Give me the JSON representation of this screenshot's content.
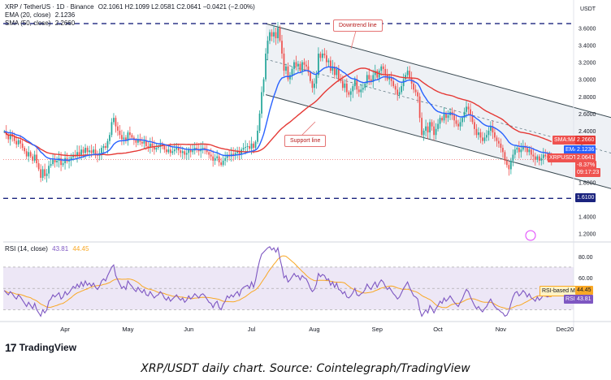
{
  "header": {
    "symbol": "XRP / TetherUS · 1D · Binance",
    "ohlc": "O2.1061 H2.1099 L2.0581 C2.0641 −0.0421 (−2.00%)",
    "ema_label": "EMA (20, close)",
    "ema_value": "2.1236",
    "sma_label": "SMA (50, close)",
    "sma_value": "2.2660",
    "rsi_label": "RSI (14, close)",
    "rsi_value": "43.81",
    "rsi_ma_value": "44.45"
  },
  "annotations": {
    "downtrend": "Downtrend line",
    "support": "Support line"
  },
  "tags": {
    "usdt": "USDT",
    "sma": "SMA:MA",
    "sma_val": "2.2660",
    "ema": "EMA",
    "ema_val": "2.1236",
    "pair": "XRPUSDT",
    "price": "2.0641",
    "change": "-8.37%",
    "countdown": "09:17:23",
    "level": "1.6100",
    "rsi_ma": "RSI-based MA",
    "rsi_ma_val": "44.45",
    "rsi": "RSI",
    "rsi_val": "43.81"
  },
  "branding": {
    "logo_mark": "17",
    "logo_text": "TradingView",
    "caption": "XRP/USDT daily chart. Source: Cointelegraph/TradingView"
  },
  "colors": {
    "up": "#26a69a",
    "down": "#ef5350",
    "ema": "#2962ff",
    "sma": "#e53935",
    "rsi": "#7e57c2",
    "rsi_ma": "#f9a825",
    "channel_fill": "#eceff4",
    "level_line": "#1a237e"
  },
  "chart_data": {
    "type": "candlestick",
    "price_axis": {
      "ticks": [
        3.6,
        3.4,
        3.2,
        3.0,
        2.8,
        2.6,
        2.4,
        2.2,
        2.0,
        1.8,
        1.6,
        1.4,
        1.2
      ],
      "tick_labels": [
        "3.6000",
        "3.4000",
        "3.2000",
        "3.0000",
        "2.8000",
        "2.6000",
        "2.4000",
        "2.2000",
        "2.0000",
        "1.8000",
        "1.6000",
        "1.4000",
        "1.2000"
      ],
      "range": [
        1.12,
        3.85
      ]
    },
    "time_axis": {
      "labels": [
        "Apr",
        "May",
        "Jun",
        "Jul",
        "Aug",
        "Sep",
        "Oct",
        "Nov",
        "Dec",
        "20"
      ],
      "label_day_index": [
        30,
        61,
        91,
        122,
        153,
        184,
        214,
        245,
        275,
        306
      ]
    },
    "horizontal_levels": [
      1.61,
      3.65
    ],
    "downtrend_line": [
      [
        129,
        3.65
      ],
      [
        300,
        2.55
      ]
    ],
    "support_line": [
      [
        129,
        2.82
      ],
      [
        300,
        1.72
      ]
    ],
    "last_close": 2.0641,
    "ema_20_last": 2.1236,
    "sma_50_last": 2.266,
    "rsi": {
      "ticks": [
        80,
        60,
        40
      ],
      "tick_labels": [
        "80.00",
        "60.00",
        "40.00"
      ],
      "upper_band": 70,
      "lower_band": 30,
      "range": [
        22,
        92
      ],
      "last": 43.81,
      "ma_last": 44.45
    },
    "closes": [
      2.39,
      2.35,
      2.3,
      2.36,
      2.33,
      2.28,
      2.24,
      2.29,
      2.25,
      2.2,
      2.16,
      2.1,
      2.15,
      2.1,
      2.05,
      2.12,
      2.02,
      1.95,
      1.85,
      1.95,
      1.87,
      1.9,
      1.99,
      2.01,
      2.06,
      2.03,
      2.05,
      2.08,
      2.0,
      2.02,
      2.08,
      2.04,
      2.06,
      2.09,
      2.12,
      2.1,
      2.15,
      2.12,
      2.18,
      2.14,
      2.2,
      2.15,
      2.17,
      2.14,
      2.18,
      2.13,
      2.11,
      2.14,
      2.2,
      2.22,
      2.2,
      2.28,
      2.35,
      2.5,
      2.55,
      2.45,
      2.4,
      2.35,
      2.3,
      2.32,
      2.28,
      2.38,
      2.35,
      2.32,
      2.29,
      2.26,
      2.3,
      2.27,
      2.25,
      2.28,
      2.22,
      2.2,
      2.25,
      2.22,
      2.18,
      2.2,
      2.21,
      2.24,
      2.22,
      2.18,
      2.15,
      2.18,
      2.14,
      2.16,
      2.18,
      2.2,
      2.17,
      2.14,
      2.16,
      2.12,
      2.14,
      2.18,
      2.15,
      2.17,
      2.2,
      2.18,
      2.16,
      2.19,
      2.2,
      2.18,
      2.15,
      2.12,
      2.1,
      2.05,
      2.08,
      2.1,
      2.03,
      2.0,
      2.05,
      2.08,
      2.12,
      2.1,
      2.13,
      2.11,
      2.14,
      2.16,
      2.12,
      2.18,
      2.2,
      2.21,
      2.22,
      2.19,
      2.25,
      2.2,
      2.27,
      2.4,
      2.6,
      2.85,
      3.0,
      3.3,
      3.45,
      3.55,
      3.5,
      3.55,
      3.48,
      3.6,
      3.45,
      3.3,
      3.1,
      3.15,
      3.0,
      3.05,
      3.12,
      3.2,
      3.15,
      3.18,
      3.1,
      3.2,
      3.17,
      3.15,
      3.08,
      2.98,
      2.9,
      2.95,
      3.05,
      3.3,
      3.25,
      3.3,
      3.28,
      3.2,
      3.22,
      3.1,
      3.15,
      3.05,
      3.12,
      3.0,
      2.98,
      2.9,
      2.95,
      2.85,
      2.82,
      2.86,
      2.92,
      3.0,
      2.88,
      2.85,
      2.88,
      2.9,
      2.95,
      3.05,
      3.0,
      2.97,
      3.05,
      3.1,
      3.02,
      3.1,
      3.15,
      3.12,
      3.05,
      3.0,
      3.02,
      2.98,
      2.92,
      2.88,
      2.82,
      2.85,
      2.92,
      3.0,
      3.05,
      3.1,
      3.02,
      2.95,
      2.88,
      2.85,
      2.8,
      2.55,
      2.35,
      2.4,
      2.45,
      2.38,
      2.5,
      2.45,
      2.35,
      2.42,
      2.48,
      2.55,
      2.52,
      2.6,
      2.55,
      2.58,
      2.62,
      2.58,
      2.52,
      2.48,
      2.45,
      2.5,
      2.55,
      2.62,
      2.68,
      2.65,
      2.58,
      2.5,
      2.42,
      2.35,
      2.38,
      2.32,
      2.28,
      2.32,
      2.35,
      2.4,
      2.45,
      2.38,
      2.32,
      2.28,
      2.25,
      2.2,
      2.15,
      2.05,
      2.0,
      1.95,
      2.05,
      2.12,
      2.18,
      2.2,
      2.15,
      2.18,
      2.22,
      2.2,
      2.15,
      2.18,
      2.12,
      2.1,
      2.06,
      2.1,
      2.05,
      2.08,
      2.12,
      2.1,
      2.09,
      2.1,
      2.0641
    ],
    "rsi_values": [
      48,
      46,
      44,
      47,
      45,
      42,
      40,
      44,
      42,
      39,
      36,
      33,
      37,
      34,
      31,
      36,
      30,
      27,
      24,
      30,
      27,
      30,
      38,
      40,
      44,
      42,
      44,
      46,
      40,
      42,
      47,
      44,
      46,
      49,
      52,
      50,
      54,
      51,
      56,
      52,
      57,
      53,
      55,
      52,
      55,
      51,
      49,
      52,
      57,
      59,
      57,
      62,
      66,
      70,
      72,
      62,
      58,
      54,
      50,
      52,
      49,
      57,
      54,
      52,
      49,
      47,
      51,
      48,
      46,
      49,
      44,
      43,
      47,
      44,
      41,
      43,
      44,
      47,
      45,
      41,
      39,
      42,
      38,
      40,
      42,
      44,
      41,
      39,
      41,
      37,
      39,
      43,
      40,
      42,
      45,
      43,
      41,
      44,
      45,
      43,
      40,
      37,
      36,
      32,
      36,
      38,
      32,
      30,
      35,
      38,
      43,
      41,
      44,
      42,
      45,
      47,
      43,
      49,
      51,
      52,
      53,
      50,
      56,
      51,
      58,
      68,
      76,
      82,
      84,
      86,
      88,
      89,
      86,
      88,
      84,
      88,
      78,
      70,
      60,
      62,
      56,
      58,
      61,
      64,
      61,
      62,
      58,
      62,
      60,
      59,
      55,
      50,
      47,
      49,
      54,
      64,
      61,
      63,
      62,
      58,
      59,
      53,
      56,
      51,
      55,
      49,
      48,
      45,
      47,
      42,
      41,
      43,
      46,
      50,
      44,
      43,
      45,
      46,
      49,
      54,
      51,
      49,
      53,
      56,
      51,
      55,
      58,
      56,
      52,
      49,
      51,
      48,
      45,
      43,
      40,
      42,
      46,
      50,
      53,
      56,
      51,
      47,
      43,
      42,
      40,
      30,
      24,
      27,
      30,
      27,
      34,
      31,
      27,
      31,
      34,
      38,
      36,
      41,
      38,
      40,
      43,
      40,
      37,
      35,
      33,
      37,
      40,
      45,
      49,
      47,
      42,
      38,
      34,
      31,
      33,
      30,
      28,
      31,
      33,
      37,
      40,
      36,
      33,
      31,
      30,
      28,
      27,
      24,
      25,
      29,
      36,
      42,
      46,
      47,
      43,
      45,
      48,
      46,
      42,
      45,
      41,
      40,
      38,
      42,
      39,
      41,
      44,
      43,
      42,
      43,
      43.81
    ]
  }
}
